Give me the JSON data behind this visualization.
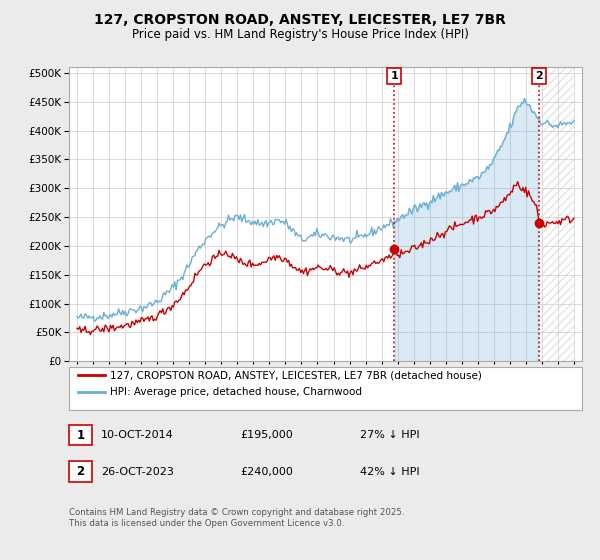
{
  "title1": "127, CROPSTON ROAD, ANSTEY, LEICESTER, LE7 7BR",
  "title2": "Price paid vs. HM Land Registry's House Price Index (HPI)",
  "ytick_vals": [
    0,
    50000,
    100000,
    150000,
    200000,
    250000,
    300000,
    350000,
    400000,
    450000,
    500000
  ],
  "ylim": [
    0,
    510000
  ],
  "xlim_start": 1994.5,
  "xlim_end": 2026.5,
  "hpi_color": "#6baed6",
  "price_color": "#cc0000",
  "vline_color": "#cc0000",
  "sale1_date": 2014.78,
  "sale1_price": 195000,
  "sale1_label": "1",
  "sale2_date": 2023.82,
  "sale2_price": 240000,
  "sale2_label": "2",
  "legend_entry1": "127, CROPSTON ROAD, ANSTEY, LEICESTER, LE7 7BR (detached house)",
  "legend_entry2": "HPI: Average price, detached house, Charnwood",
  "annotation1_date": "10-OCT-2014",
  "annotation1_price": "£195,000",
  "annotation1_hpi": "27% ↓ HPI",
  "annotation2_date": "26-OCT-2023",
  "annotation2_price": "£240,000",
  "annotation2_hpi": "42% ↓ HPI",
  "footer": "Contains HM Land Registry data © Crown copyright and database right 2025.\nThis data is licensed under the Open Government Licence v3.0.",
  "bg_color": "#ebebeb",
  "plot_bg_color": "#ffffff",
  "grid_color": "#cccccc",
  "hatch_color": "#cccccc"
}
